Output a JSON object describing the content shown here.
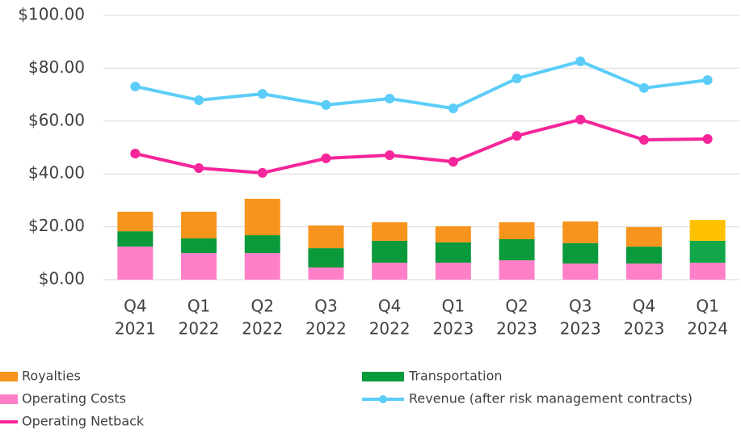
{
  "chart_data": {
    "type": "bar-line",
    "categories": [
      [
        "Q4",
        "2021"
      ],
      [
        "Q1",
        "2022"
      ],
      [
        "Q2",
        "2022"
      ],
      [
        "Q3",
        "2022"
      ],
      [
        "Q4",
        "2022"
      ],
      [
        "Q1",
        "2023"
      ],
      [
        "Q2",
        "2023"
      ],
      [
        "Q3",
        "2023"
      ],
      [
        "Q4",
        "2023"
      ],
      [
        "Q1",
        "2024"
      ]
    ],
    "series": [
      {
        "name": "Royalties",
        "type": "bar",
        "color": "#f7941d",
        "colors": [
          "#f7941d",
          "#f7941d",
          "#f7941d",
          "#f7941d",
          "#f7941d",
          "#f7941d",
          "#f7941d",
          "#f7941d",
          "#f7941d",
          "#ffc000"
        ],
        "values": [
          7.4,
          10.1,
          13.8,
          8.6,
          7.0,
          6.1,
          6.4,
          8.2,
          7.4,
          7.9
        ]
      },
      {
        "name": "Transportation",
        "type": "bar",
        "color": "#0a9a3c",
        "colors": [
          "#0a9a3c",
          "#0a9a3c",
          "#0a9a3c",
          "#0a9a3c",
          "#0a9a3c",
          "#0a9a3c",
          "#0a9a3c",
          "#0a9a3c",
          "#0a9a3c",
          "#12a84a"
        ],
        "values": [
          5.8,
          5.5,
          6.7,
          7.3,
          8.3,
          7.7,
          8.0,
          7.7,
          6.4,
          8.3
        ]
      },
      {
        "name": "Operating Costs",
        "type": "bar",
        "color": "#ff80c8",
        "colors": [
          "#ff80c8",
          "#ff80c8",
          "#ff80c8",
          "#ff80c8",
          "#ff80c8",
          "#ff80c8",
          "#ff80c8",
          "#ff80c8",
          "#ff80c8",
          "#ff80c8"
        ],
        "values": [
          12.5,
          10.1,
          10.1,
          4.6,
          6.4,
          6.4,
          7.3,
          6.1,
          6.1,
          6.4
        ]
      },
      {
        "name": "Revenue (after risk management contracts)",
        "type": "line",
        "marker": true,
        "color": "#5bcdf8",
        "values": [
          73.1,
          67.9,
          70.3,
          66.1,
          68.5,
          64.8,
          76.1,
          82.6,
          72.5,
          75.5
        ]
      },
      {
        "name": "Operating Netback",
        "type": "line",
        "marker": true,
        "color": "#f5259a",
        "values": [
          47.7,
          42.2,
          40.4,
          45.9,
          47.1,
          44.6,
          54.4,
          60.6,
          52.9,
          53.2
        ]
      }
    ],
    "ylim": [
      0,
      100
    ],
    "yticks": [
      {
        "value": 0,
        "label": "$0.00"
      },
      {
        "value": 20,
        "label": "$20.00"
      },
      {
        "value": 40,
        "label": "$40.00"
      },
      {
        "value": 60,
        "label": "$60.00"
      },
      {
        "value": 80,
        "label": "$80.00"
      },
      {
        "value": 100,
        "label": "$100.00"
      }
    ],
    "grid": true,
    "legend": "bottom"
  }
}
